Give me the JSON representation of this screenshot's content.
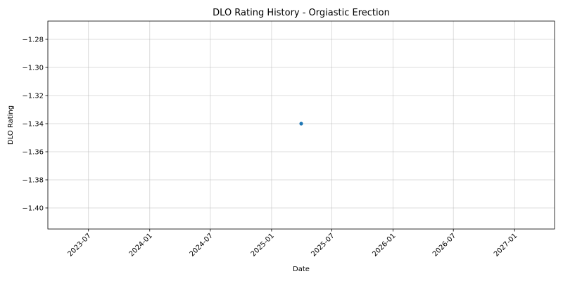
{
  "chart_data": {
    "type": "scatter",
    "title": "DLO Rating History - Orgiastic Erection",
    "xlabel": "Date",
    "ylabel": "DLO Rating",
    "x_axis_type": "date",
    "xlim": [
      "2023-03-01",
      "2027-05-01"
    ],
    "ylim": [
      -1.415,
      -1.267
    ],
    "x_ticks": [
      "2023-07",
      "2024-01",
      "2024-07",
      "2025-01",
      "2025-07",
      "2026-01",
      "2026-07",
      "2027-01"
    ],
    "y_ticks": [
      -1.28,
      -1.3,
      -1.32,
      -1.34,
      -1.36,
      -1.38,
      -1.4
    ],
    "grid": true,
    "legend": "none",
    "series": [
      {
        "color": "#1f77b4",
        "points": [
          {
            "x": "2025-03-31",
            "y": -1.34
          }
        ]
      }
    ]
  }
}
